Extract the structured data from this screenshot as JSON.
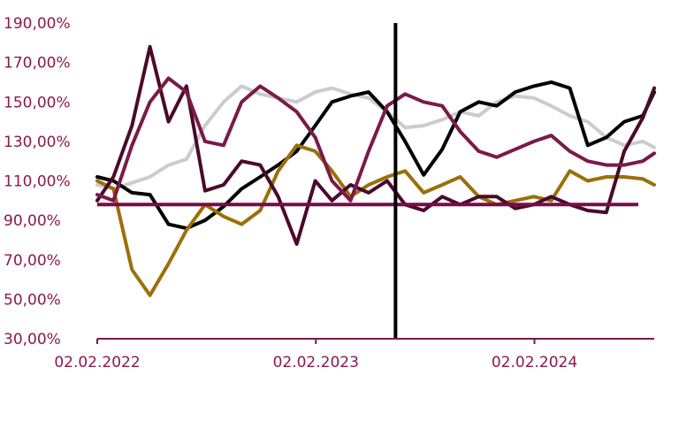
{
  "chart_data": {
    "type": "line",
    "title": "",
    "xlabel": "",
    "ylabel": "",
    "ylim": [
      30,
      190
    ],
    "y_ticks": [
      {
        "value": 190,
        "label": "190,00%"
      },
      {
        "value": 170,
        "label": "170,00%"
      },
      {
        "value": 150,
        "label": "150,00%"
      },
      {
        "value": 130,
        "label": "130,00%"
      },
      {
        "value": 110,
        "label": "110,00%"
      },
      {
        "value": 90,
        "label": "90,00%"
      },
      {
        "value": 70,
        "label": "70,00%"
      },
      {
        "value": 50,
        "label": "50,00%"
      },
      {
        "value": 30,
        "label": "30,00%"
      }
    ],
    "xlim": [
      "2022-02-02",
      "2024-08-20"
    ],
    "x_ticks": [
      {
        "value": "2022-02-02",
        "label": "02.02.2022"
      },
      {
        "value": "2023-02-02",
        "label": "02.02.2023"
      },
      {
        "value": "2024-02-02",
        "label": "02.02.2024"
      }
    ],
    "grid": false,
    "legend": "none",
    "reference_lines": [
      {
        "orientation": "horizontal",
        "value": 98,
        "color": "#7a0a4a"
      },
      {
        "orientation": "vertical",
        "value": "2023-06-15",
        "color": "#000000"
      }
    ],
    "series": [
      {
        "color": "#cccccc",
        "x": [
          "2022-02-02",
          "2022-03-01",
          "2022-04-01",
          "2022-05-01",
          "2022-06-01",
          "2022-07-01",
          "2022-08-01",
          "2022-09-01",
          "2022-10-01",
          "2022-11-01",
          "2022-12-01",
          "2023-01-01",
          "2023-02-01",
          "2023-03-01",
          "2023-04-01",
          "2023-05-01",
          "2023-06-01",
          "2023-07-01",
          "2023-08-01",
          "2023-09-01",
          "2023-10-01",
          "2023-11-01",
          "2023-12-01",
          "2024-01-01",
          "2024-02-01",
          "2024-03-01",
          "2024-04-01",
          "2024-05-01",
          "2024-06-01",
          "2024-07-01",
          "2024-08-01",
          "2024-08-20"
        ],
        "y": [
          108,
          106,
          109,
          112,
          118,
          121,
          138,
          150,
          158,
          154,
          152,
          150,
          155,
          157,
          154,
          152,
          145,
          137,
          138,
          141,
          145,
          143,
          150,
          153,
          152,
          148,
          143,
          140,
          132,
          128,
          130,
          127
        ]
      },
      {
        "color": "#000000",
        "x": [
          "2022-02-02",
          "2022-03-01",
          "2022-04-01",
          "2022-05-01",
          "2022-06-01",
          "2022-07-01",
          "2022-08-01",
          "2022-09-01",
          "2022-10-01",
          "2022-11-01",
          "2022-12-01",
          "2023-01-01",
          "2023-02-01",
          "2023-03-01",
          "2023-04-01",
          "2023-05-01",
          "2023-06-01",
          "2023-07-01",
          "2023-08-01",
          "2023-09-01",
          "2023-10-01",
          "2023-11-01",
          "2023-12-01",
          "2024-01-01",
          "2024-02-01",
          "2024-03-01",
          "2024-04-01",
          "2024-05-01",
          "2024-06-01",
          "2024-07-01",
          "2024-08-01",
          "2024-08-20"
        ],
        "y": [
          112,
          110,
          104,
          103,
          88,
          86,
          90,
          97,
          106,
          112,
          118,
          125,
          138,
          150,
          153,
          155,
          145,
          130,
          113,
          126,
          145,
          150,
          148,
          155,
          158,
          160,
          157,
          128,
          132,
          140,
          143,
          155
        ]
      },
      {
        "color": "#9a7008",
        "x": [
          "2022-02-02",
          "2022-03-01",
          "2022-04-01",
          "2022-05-01",
          "2022-06-01",
          "2022-07-01",
          "2022-08-01",
          "2022-09-01",
          "2022-10-01",
          "2022-11-01",
          "2022-12-01",
          "2023-01-01",
          "2023-02-01",
          "2023-03-01",
          "2023-04-01",
          "2023-05-01",
          "2023-06-01",
          "2023-07-01",
          "2023-08-01",
          "2023-09-01",
          "2023-10-01",
          "2023-11-01",
          "2023-12-01",
          "2024-01-01",
          "2024-02-01",
          "2024-03-01",
          "2024-04-01",
          "2024-05-01",
          "2024-06-01",
          "2024-07-01",
          "2024-08-01",
          "2024-08-20"
        ],
        "y": [
          110,
          106,
          65,
          52,
          68,
          85,
          98,
          92,
          88,
          95,
          115,
          128,
          125,
          115,
          102,
          108,
          112,
          115,
          104,
          108,
          112,
          102,
          98,
          100,
          102,
          100,
          115,
          110,
          112,
          112,
          111,
          108
        ]
      },
      {
        "color": "#4a0a2a",
        "x": [
          "2022-02-02",
          "2022-03-01",
          "2022-04-01",
          "2022-05-01",
          "2022-06-01",
          "2022-07-01",
          "2022-08-01",
          "2022-09-01",
          "2022-10-01",
          "2022-11-01",
          "2022-12-01",
          "2023-01-01",
          "2023-02-01",
          "2023-03-01",
          "2023-04-01",
          "2023-05-01",
          "2023-06-01",
          "2023-07-01",
          "2023-08-01",
          "2023-09-01",
          "2023-10-01",
          "2023-11-01",
          "2023-12-01",
          "2024-01-01",
          "2024-02-01",
          "2024-03-01",
          "2024-04-01",
          "2024-05-01",
          "2024-06-01",
          "2024-07-01",
          "2024-08-01",
          "2024-08-20"
        ],
        "y": [
          100,
          112,
          138,
          178,
          140,
          158,
          105,
          108,
          120,
          118,
          102,
          78,
          110,
          100,
          108,
          104,
          110,
          98,
          95,
          102,
          98,
          102,
          102,
          96,
          98,
          102,
          98,
          95,
          94,
          125,
          142,
          157
        ]
      },
      {
        "color": "#7a1a4a",
        "x": [
          "2022-02-02",
          "2022-03-01",
          "2022-04-01",
          "2022-05-01",
          "2022-06-01",
          "2022-07-01",
          "2022-08-01",
          "2022-09-01",
          "2022-10-01",
          "2022-11-01",
          "2022-12-01",
          "2023-01-01",
          "2023-02-01",
          "2023-03-01",
          "2023-04-01",
          "2023-05-01",
          "2023-06-01",
          "2023-07-01",
          "2023-08-01",
          "2023-09-01",
          "2023-10-01",
          "2023-11-01",
          "2023-12-01",
          "2024-01-01",
          "2024-02-01",
          "2024-03-01",
          "2024-04-01",
          "2024-05-01",
          "2024-06-01",
          "2024-07-01",
          "2024-08-01",
          "2024-08-20"
        ],
        "y": [
          103,
          100,
          128,
          150,
          162,
          155,
          130,
          128,
          150,
          158,
          152,
          145,
          132,
          110,
          100,
          125,
          148,
          154,
          150,
          148,
          135,
          125,
          122,
          126,
          130,
          133,
          125,
          120,
          118,
          118,
          120,
          124
        ]
      }
    ]
  }
}
